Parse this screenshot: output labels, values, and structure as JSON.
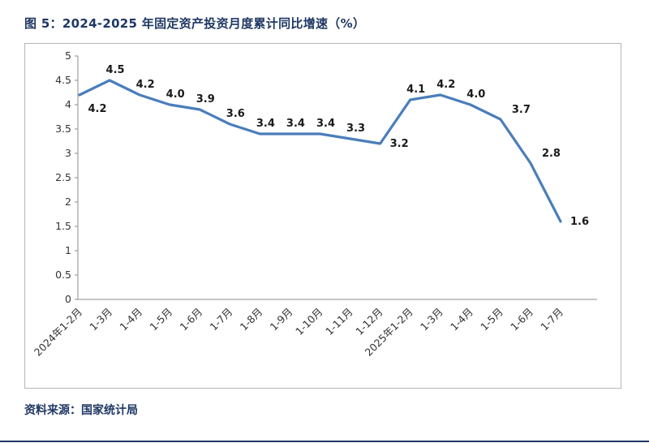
{
  "title": "图 5：2024-2025 年固定资产投资月度累计同比增速（%）",
  "source": "资料来源：国家统计局",
  "colors": {
    "line": "#4a7ebb",
    "heading": "#1f3864",
    "axis": "#8c8c8c"
  },
  "chart_data": {
    "type": "line",
    "title": "图 5：2024-2025 年固定资产投资月度累计同比增速（%）",
    "xlabel": "",
    "ylabel": "",
    "categories": [
      "2024年1-2月",
      "1-3月",
      "1-4月",
      "1-5月",
      "1-6月",
      "1-7月",
      "1-8月",
      "1-9月",
      "1-10月",
      "1-11月",
      "1-12月",
      "2025年1-2月",
      "1-3月",
      "1-4月",
      "1-5月",
      "1-6月",
      "1-7月"
    ],
    "values": [
      4.2,
      4.5,
      4.2,
      4.0,
      3.9,
      3.6,
      3.4,
      3.4,
      3.4,
      3.3,
      3.2,
      4.1,
      4.2,
      4.0,
      3.7,
      2.8,
      1.6
    ],
    "ylim": [
      0,
      5
    ],
    "ytick_step": 0.5,
    "grid": false,
    "legend": false,
    "line_color": "#4a7ebb",
    "label_placement": [
      "below-right",
      "above",
      "above",
      "above",
      "above",
      "above",
      "above",
      "above",
      "above",
      "above",
      "right",
      "above",
      "above",
      "above",
      "above-right",
      "above-right",
      "right"
    ]
  }
}
